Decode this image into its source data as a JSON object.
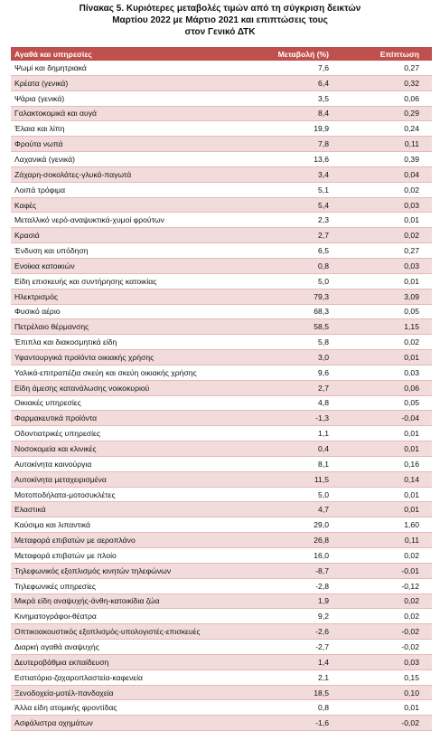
{
  "header": {
    "title": [
      "Πίνακας 5. Κυριότερες μεταβολές τιμών από τη σύγκριση δεικτών",
      "Μαρτίου 2022 με Μάρτιο 2021 και επιπτώσεις τους",
      "στον Γενικό ΔΤΚ"
    ]
  },
  "table": {
    "columns": [
      "Αγαθά και υπηρεσίες",
      "Μεταβολή (%)",
      "Επίπτωση"
    ],
    "rows": [
      [
        "Ψωμί και δημητριακά",
        "7,6",
        "0,27"
      ],
      [
        "Κρέατα (γενικά)",
        "6,4",
        "0,32"
      ],
      [
        "Ψάρια (γενικά)",
        "3,5",
        "0,06"
      ],
      [
        "Γαλακτοκομικά και αυγά",
        "8,4",
        "0,29"
      ],
      [
        "Έλαια και λίπη",
        "19,9",
        "0,24"
      ],
      [
        "Φρούτα νωπά",
        "7,8",
        "0,11"
      ],
      [
        "Λαχανικά (γενικά)",
        "13,6",
        "0,39"
      ],
      [
        "Ζάχαρη-σοκολάτες-γλυκά-παγωτά",
        "3,4",
        "0,04"
      ],
      [
        "Λοιπά τρόφιμα",
        "5,1",
        "0,02"
      ],
      [
        "Καφές",
        "5,4",
        "0,03"
      ],
      [
        "Μεταλλικό νερό-αναψυκτικά-χυμοί φρούτων",
        "2,3",
        "0,01"
      ],
      [
        "Κρασιά",
        "2,7",
        "0,02"
      ],
      [
        "Ένδυση και υπόδηση",
        "6,5",
        "0,27"
      ],
      [
        "Ενοίκια κατοικιών",
        "0,8",
        "0,03"
      ],
      [
        "Είδη επισκευής και συντήρησης κατοικίας",
        "5,0",
        "0,01"
      ],
      [
        "Ηλεκτρισμός",
        "79,3",
        "3,09"
      ],
      [
        "Φυσικό αέριο",
        "68,3",
        "0,05"
      ],
      [
        "Πετρέλαιο θέρμανσης",
        "58,5",
        "1,15"
      ],
      [
        "Έπιπλα και διακοσμητικά είδη",
        "5,8",
        "0,02"
      ],
      [
        "Υφαντουργικά προϊόντα οικιακής χρήσης",
        "3,0",
        "0,01"
      ],
      [
        "Υαλικά-επιτραπέζια σκεύη και σκεύη οικιακής χρήσης",
        "9,6",
        "0,03"
      ],
      [
        "Είδη άμεσης κατανάλωσης νοικοκυριού",
        "2,7",
        "0,06"
      ],
      [
        "Οικιακές υπηρεσίες",
        "4,8",
        "0,05"
      ],
      [
        "Φαρμακευτικά προϊόντα",
        "-1,3",
        "-0,04"
      ],
      [
        "Οδοντιατρικές υπηρεσίες",
        "1,1",
        "0,01"
      ],
      [
        "Νοσοκομεία και κλινικές",
        "0,4",
        "0,01"
      ],
      [
        "Αυτοκίνητα καινούργια",
        "8,1",
        "0,16"
      ],
      [
        "Αυτοκίνητα μεταχειρισμένα",
        "11,5",
        "0,14"
      ],
      [
        "Μοτοποδήλατα-μοτοσυκλέτες",
        "5,0",
        "0,01"
      ],
      [
        "Ελαστικά",
        "4,7",
        "0,01"
      ],
      [
        "Καύσιμα και λιπαντικά",
        "29,0",
        "1,60"
      ],
      [
        "Μεταφορά επιβατών με αεροπλάνο",
        "26,8",
        "0,11"
      ],
      [
        "Μεταφορά επιβατών με πλοίο",
        "16,0",
        "0,02"
      ],
      [
        "Τηλεφωνικός εξοπλισμός κινητών τηλεφώνων",
        "-8,7",
        "-0,01"
      ],
      [
        "Τηλεφωνικές υπηρεσίες",
        "-2,8",
        "-0,12"
      ],
      [
        "Μικρά είδη αναψυχής-άνθη-κατοικίδια ζώα",
        "1,9",
        "0,02"
      ],
      [
        "Κινηματογράφοι-θέατρα",
        "9,2",
        "0,02"
      ],
      [
        "Οπτικοακουστικός εξοπλισμός-υπολογιστές-επισκευές",
        "-2,6",
        "-0,02"
      ],
      [
        "Διαρκή αγαθά αναψυχής",
        "-2,7",
        "-0,02"
      ],
      [
        "Δευτεροβάθμια εκπαίδευση",
        "1,4",
        "0,03"
      ],
      [
        "Εστιατόρια-ζαχαροπλαστεία-καφενεία",
        "2,1",
        "0,15"
      ],
      [
        "Ξενοδοχεία-μοτέλ-πανδοχεία",
        "18,5",
        "0,10"
      ],
      [
        "Άλλα είδη ατομικής φροντίδας",
        "0,8",
        "0,01"
      ],
      [
        "Ασφάλιστρα οχημάτων",
        "-1,6",
        "-0,02"
      ]
    ]
  }
}
